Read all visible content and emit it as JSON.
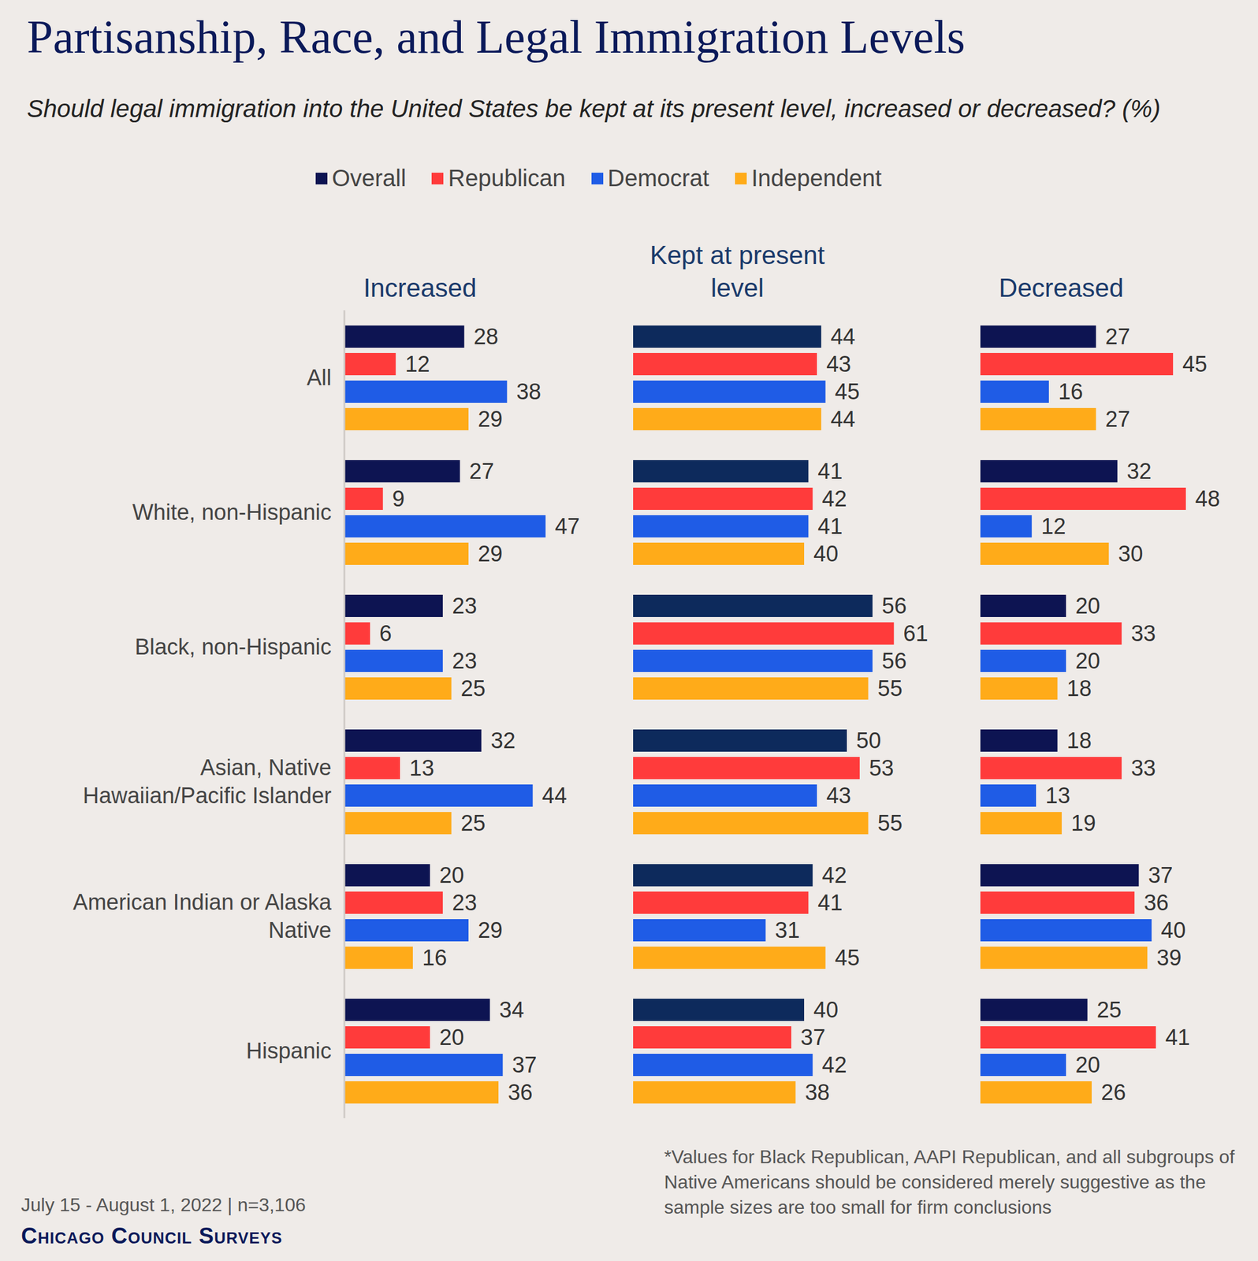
{
  "title": "Partisanship, Race, and Legal Immigration Levels",
  "subtitle": "Should legal immigration into the United States be kept at its present level, increased or decreased? (%)",
  "source": "July 15 - August 1, 2022 | n=3,106",
  "publisher": "Chicago Council Surveys",
  "note": "*Values for Black Republican, AAPI Republican, and all subgroups of Native Americans should be considered merely suggestive as the sample sizes are too small for firm conclusions",
  "chart_data": [
    {
      "type": "bar",
      "title": "Increased",
      "orientation": "horizontal",
      "data_labels": true,
      "tick_labels": "y",
      "legend": "top",
      "xlim": [
        0,
        55
      ],
      "categories": [
        "All",
        "White, non-Hispanic",
        "Black, non-Hispanic",
        "Asian, Native Hawaiian/Pacific Islander",
        "American Indian or Alaska Native",
        "Hispanic"
      ],
      "series": [
        {
          "name": "Overall",
          "color": "#0d1452",
          "values": [
            28,
            27,
            23,
            32,
            20,
            34
          ]
        },
        {
          "name": "Republican",
          "color": "#ff3b3b",
          "values": [
            12,
            9,
            6,
            13,
            23,
            20
          ]
        },
        {
          "name": "Democrat",
          "color": "#1f5ce6",
          "values": [
            38,
            47,
            23,
            44,
            29,
            37
          ]
        },
        {
          "name": "Independent",
          "color": "#ffab19",
          "values": [
            29,
            29,
            25,
            25,
            16,
            36
          ]
        }
      ]
    },
    {
      "type": "bar",
      "title": "Kept at present level",
      "orientation": "horizontal",
      "data_labels": true,
      "tick_labels": false,
      "xlim": [
        0,
        70
      ],
      "categories": [
        "All",
        "White, non-Hispanic",
        "Black, non-Hispanic",
        "Asian, Native Hawaiian/Pacific Islander",
        "American Indian or Alaska Native",
        "Hispanic"
      ],
      "series": [
        {
          "name": "Overall",
          "color": "#0d2a5c",
          "values": [
            44,
            41,
            56,
            50,
            42,
            40
          ]
        },
        {
          "name": "Republican",
          "color": "#ff3b3b",
          "values": [
            43,
            42,
            61,
            53,
            41,
            37
          ]
        },
        {
          "name": "Democrat",
          "color": "#1f5ce6",
          "values": [
            45,
            41,
            56,
            43,
            31,
            42
          ]
        },
        {
          "name": "Independent",
          "color": "#ffab19",
          "values": [
            44,
            40,
            55,
            55,
            45,
            38
          ]
        }
      ]
    },
    {
      "type": "bar",
      "title": "Decreased",
      "orientation": "horizontal",
      "data_labels": true,
      "tick_labels": false,
      "xlim": [
        0,
        55
      ],
      "categories": [
        "All",
        "White, non-Hispanic",
        "Black, non-Hispanic",
        "Asian, Native Hawaiian/Pacific Islander",
        "American Indian or Alaska Native",
        "Hispanic"
      ],
      "series": [
        {
          "name": "Overall",
          "color": "#0d1452",
          "values": [
            27,
            32,
            20,
            18,
            37,
            25
          ]
        },
        {
          "name": "Republican",
          "color": "#ff3b3b",
          "values": [
            45,
            48,
            33,
            33,
            36,
            41
          ]
        },
        {
          "name": "Democrat",
          "color": "#1f5ce6",
          "values": [
            16,
            12,
            20,
            13,
            40,
            20
          ]
        },
        {
          "name": "Independent",
          "color": "#ffab19",
          "values": [
            27,
            30,
            18,
            19,
            39,
            26
          ]
        }
      ]
    }
  ]
}
